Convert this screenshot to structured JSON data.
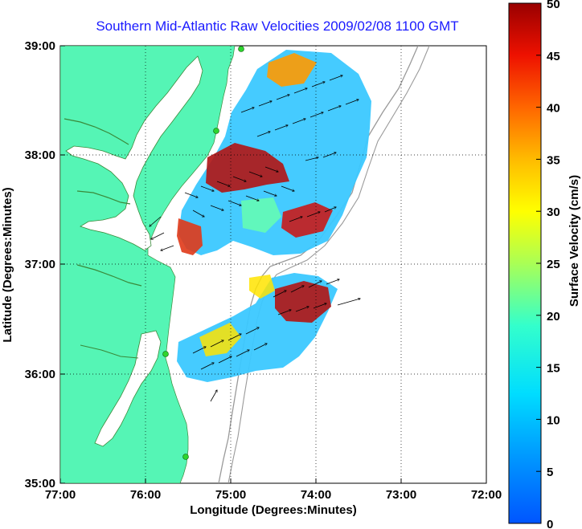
{
  "title": "Southern Mid-Atlantic Raw Velocities 2009/02/08 1100 GMT",
  "map": {
    "x_axis_label": "Longitude (Degrees:Minutes)",
    "y_axis_label": "Latitude (Degrees:Minutes)",
    "x_ticks": [
      "77:00",
      "76:00",
      "75:00",
      "74:00",
      "73:00",
      "72:00"
    ],
    "y_ticks": [
      "39:00",
      "38:00",
      "37:00",
      "36:00",
      "35:00"
    ],
    "land_color": "#55f5b5",
    "bathymetry_color": "#9a9a9a",
    "station_color": "#2ed42e",
    "stations": [
      "station-1",
      "station-2",
      "station-3",
      "station-4"
    ]
  },
  "colorbar": {
    "label": "Surface Velocity (cm/s)",
    "ticks": [
      "0",
      "5",
      "10",
      "15",
      "20",
      "25",
      "30",
      "35",
      "40",
      "45",
      "50"
    ],
    "min": 0,
    "max": 50,
    "colormap": "jet"
  }
}
